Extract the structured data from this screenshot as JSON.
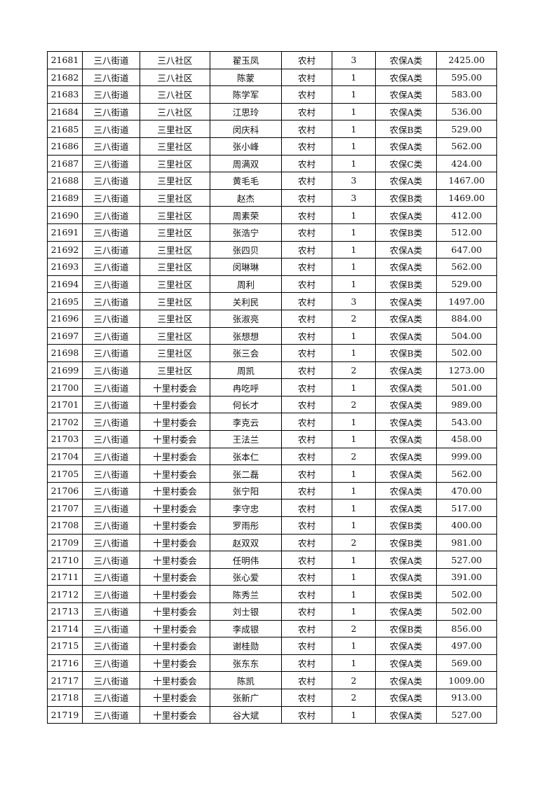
{
  "rows": [
    [
      "21681",
      "三八街道",
      "三八社区",
      "翟玉凤",
      "农村",
      "3",
      "农保A类",
      "2425.00"
    ],
    [
      "21682",
      "三八街道",
      "三八社区",
      "陈蒙",
      "农村",
      "1",
      "农保A类",
      "595.00"
    ],
    [
      "21683",
      "三八街道",
      "三八社区",
      "陈学军",
      "农村",
      "1",
      "农保A类",
      "583.00"
    ],
    [
      "21684",
      "三八街道",
      "三八社区",
      "江思玲",
      "农村",
      "1",
      "农保A类",
      "536.00"
    ],
    [
      "21685",
      "三八街道",
      "三里社区",
      "闵庆科",
      "农村",
      "1",
      "农保B类",
      "529.00"
    ],
    [
      "21686",
      "三八街道",
      "三里社区",
      "张小峰",
      "农村",
      "1",
      "农保A类",
      "562.00"
    ],
    [
      "21687",
      "三八街道",
      "三里社区",
      "周满双",
      "农村",
      "1",
      "农保C类",
      "424.00"
    ],
    [
      "21688",
      "三八街道",
      "三里社区",
      "黄毛毛",
      "农村",
      "3",
      "农保A类",
      "1467.00"
    ],
    [
      "21689",
      "三八街道",
      "三里社区",
      "赵杰",
      "农村",
      "3",
      "农保B类",
      "1469.00"
    ],
    [
      "21690",
      "三八街道",
      "三里社区",
      "周素荣",
      "农村",
      "1",
      "农保A类",
      "412.00"
    ],
    [
      "21691",
      "三八街道",
      "三里社区",
      "张浩宁",
      "农村",
      "1",
      "农保B类",
      "512.00"
    ],
    [
      "21692",
      "三八街道",
      "三里社区",
      "张四贝",
      "农村",
      "1",
      "农保A类",
      "647.00"
    ],
    [
      "21693",
      "三八街道",
      "三里社区",
      "闵琳琳",
      "农村",
      "1",
      "农保A类",
      "562.00"
    ],
    [
      "21694",
      "三八街道",
      "三里社区",
      "周利",
      "农村",
      "1",
      "农保B类",
      "529.00"
    ],
    [
      "21695",
      "三八街道",
      "三里社区",
      "关利民",
      "农村",
      "3",
      "农保A类",
      "1497.00"
    ],
    [
      "21696",
      "三八街道",
      "三里社区",
      "张淑亮",
      "农村",
      "2",
      "农保A类",
      "884.00"
    ],
    [
      "21697",
      "三八街道",
      "三里社区",
      "张想想",
      "农村",
      "1",
      "农保A类",
      "504.00"
    ],
    [
      "21698",
      "三八街道",
      "三里社区",
      "张三会",
      "农村",
      "1",
      "农保B类",
      "502.00"
    ],
    [
      "21699",
      "三八街道",
      "三里社区",
      "周凯",
      "农村",
      "2",
      "农保A类",
      "1273.00"
    ],
    [
      "21700",
      "三八街道",
      "十里村委会",
      "冉吃呼",
      "农村",
      "1",
      "农保A类",
      "501.00"
    ],
    [
      "21701",
      "三八街道",
      "十里村委会",
      "何长才",
      "农村",
      "2",
      "农保A类",
      "989.00"
    ],
    [
      "21702",
      "三八街道",
      "十里村委会",
      "李克云",
      "农村",
      "1",
      "农保A类",
      "543.00"
    ],
    [
      "21703",
      "三八街道",
      "十里村委会",
      "王法兰",
      "农村",
      "1",
      "农保A类",
      "458.00"
    ],
    [
      "21704",
      "三八街道",
      "十里村委会",
      "张本仁",
      "农村",
      "2",
      "农保A类",
      "999.00"
    ],
    [
      "21705",
      "三八街道",
      "十里村委会",
      "张二磊",
      "农村",
      "1",
      "农保A类",
      "562.00"
    ],
    [
      "21706",
      "三八街道",
      "十里村委会",
      "张宁阳",
      "农村",
      "1",
      "农保A类",
      "470.00"
    ],
    [
      "21707",
      "三八街道",
      "十里村委会",
      "李守忠",
      "农村",
      "1",
      "农保A类",
      "517.00"
    ],
    [
      "21708",
      "三八街道",
      "十里村委会",
      "罗雨彤",
      "农村",
      "1",
      "农保B类",
      "400.00"
    ],
    [
      "21709",
      "三八街道",
      "十里村委会",
      "赵双双",
      "农村",
      "2",
      "农保B类",
      "981.00"
    ],
    [
      "21710",
      "三八街道",
      "十里村委会",
      "任明伟",
      "农村",
      "1",
      "农保A类",
      "527.00"
    ],
    [
      "21711",
      "三八街道",
      "十里村委会",
      "张心爱",
      "农村",
      "1",
      "农保A类",
      "391.00"
    ],
    [
      "21712",
      "三八街道",
      "十里村委会",
      "陈秀兰",
      "农村",
      "1",
      "农保B类",
      "502.00"
    ],
    [
      "21713",
      "三八街道",
      "十里村委会",
      "刘士银",
      "农村",
      "1",
      "农保A类",
      "502.00"
    ],
    [
      "21714",
      "三八街道",
      "十里村委会",
      "李成银",
      "农村",
      "2",
      "农保B类",
      "856.00"
    ],
    [
      "21715",
      "三八街道",
      "十里村委会",
      "谢桂勋",
      "农村",
      "1",
      "农保A类",
      "497.00"
    ],
    [
      "21716",
      "三八街道",
      "十里村委会",
      "张东东",
      "农村",
      "1",
      "农保A类",
      "569.00"
    ],
    [
      "21717",
      "三八街道",
      "十里村委会",
      "陈凯",
      "农村",
      "2",
      "农保A类",
      "1009.00"
    ],
    [
      "21718",
      "三八街道",
      "十里村委会",
      "张新广",
      "农村",
      "2",
      "农保A类",
      "913.00"
    ],
    [
      "21719",
      "三八街道",
      "十里村委会",
      "谷大斌",
      "农村",
      "1",
      "农保A类",
      "527.00"
    ]
  ]
}
